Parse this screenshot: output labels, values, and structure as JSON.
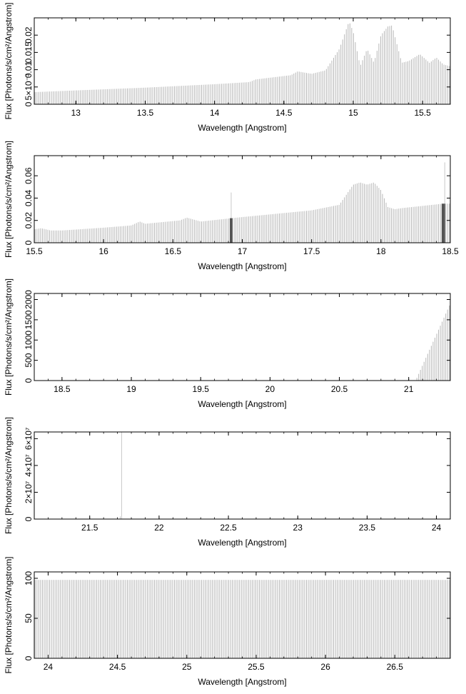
{
  "chart_data": [
    {
      "type": "bar",
      "xlabel": "Wavelength [Angstrom]",
      "ylabel": "Flux [Photons/s/cm²/Angstrom]",
      "xlim": [
        12.7,
        15.7
      ],
      "ylim": [
        0,
        0.025
      ],
      "xticks": [
        {
          "v": 13,
          "t": "13"
        },
        {
          "v": 13.5,
          "t": "13.5"
        },
        {
          "v": 14,
          "t": "14"
        },
        {
          "v": 14.5,
          "t": "14.5"
        },
        {
          "v": 15,
          "t": "15"
        },
        {
          "v": 15.5,
          "t": "15.5"
        }
      ],
      "yticks": [
        {
          "v": 0,
          "t": "0"
        },
        {
          "v": 0.005,
          "t": "5×10⁻³"
        },
        {
          "v": 0.01,
          "t": "0.01"
        },
        {
          "v": 0.015,
          "t": "0.015"
        },
        {
          "v": 0.02,
          "t": "0.02"
        }
      ],
      "bins": 230,
      "spectrum": {
        "x": [
          12.7,
          13.0,
          13.5,
          14.0,
          14.25,
          14.3,
          14.55,
          14.6,
          14.7,
          14.8,
          14.9,
          14.97,
          15.0,
          15.05,
          15.1,
          15.15,
          15.2,
          15.25,
          15.28,
          15.35,
          15.4,
          15.48,
          15.55,
          15.6,
          15.65,
          15.7
        ],
        "y": [
          0.0035,
          0.004,
          0.0048,
          0.0058,
          0.0064,
          0.0072,
          0.0084,
          0.0095,
          0.0088,
          0.0098,
          0.016,
          0.024,
          0.021,
          0.011,
          0.016,
          0.012,
          0.02,
          0.0225,
          0.0228,
          0.012,
          0.0125,
          0.0145,
          0.012,
          0.0135,
          0.0115,
          0.011
        ]
      },
      "dark_bars": []
    },
    {
      "type": "bar",
      "xlabel": "Wavelength [Angstrom]",
      "ylabel": "Flux [Photons/s/cm²/Angstrom]",
      "xlim": [
        15.5,
        18.5
      ],
      "ylim": [
        0,
        0.078
      ],
      "xticks": [
        {
          "v": 15.5,
          "t": "15.5"
        },
        {
          "v": 16,
          "t": "16"
        },
        {
          "v": 16.5,
          "t": "16.5"
        },
        {
          "v": 17,
          "t": "17"
        },
        {
          "v": 17.5,
          "t": "17.5"
        },
        {
          "v": 18,
          "t": "18"
        },
        {
          "v": 18.5,
          "t": "18.5"
        }
      ],
      "yticks": [
        {
          "v": 0,
          "t": "0"
        },
        {
          "v": 0.02,
          "t": "0.02"
        },
        {
          "v": 0.04,
          "t": "0.04"
        },
        {
          "v": 0.06,
          "t": "0.06"
        }
      ],
      "bins": 230,
      "spectrum": {
        "x": [
          15.5,
          15.55,
          15.62,
          15.7,
          16.0,
          16.2,
          16.26,
          16.3,
          16.55,
          16.6,
          16.7,
          17.0,
          17.5,
          17.7,
          17.8,
          17.85,
          17.9,
          17.95,
          18.0,
          18.05,
          18.1,
          18.15,
          18.45,
          18.5
        ],
        "y": [
          0.012,
          0.013,
          0.011,
          0.011,
          0.0135,
          0.0155,
          0.019,
          0.017,
          0.02,
          0.0225,
          0.019,
          0.023,
          0.029,
          0.034,
          0.052,
          0.054,
          0.052,
          0.054,
          0.047,
          0.032,
          0.03,
          0.031,
          0.035,
          0.035
        ]
      },
      "spikes": [
        {
          "x": 16.92,
          "y": 0.045
        },
        {
          "x": 18.46,
          "y": 0.072
        }
      ],
      "dark_bars": [
        {
          "x": 16.92,
          "y": 0.022,
          "w": 0.02
        },
        {
          "x": 18.45,
          "y": 0.035,
          "w": 0.025
        }
      ]
    },
    {
      "type": "bar",
      "xlabel": "Wavelength [Angstrom]",
      "ylabel": "Flux [Photons/s/cm²/Angstrom]",
      "xlim": [
        18.3,
        21.3
      ],
      "ylim": [
        0,
        2150
      ],
      "xticks": [
        {
          "v": 18.5,
          "t": "18.5"
        },
        {
          "v": 19,
          "t": "19"
        },
        {
          "v": 19.5,
          "t": "19.5"
        },
        {
          "v": 20,
          "t": "20"
        },
        {
          "v": 20.5,
          "t": "20.5"
        },
        {
          "v": 21,
          "t": "21"
        }
      ],
      "yticks": [
        {
          "v": 0,
          "t": "0"
        },
        {
          "v": 500,
          "t": "500"
        },
        {
          "v": 1000,
          "t": "1000"
        },
        {
          "v": 1500,
          "t": "1500"
        },
        {
          "v": 2000,
          "t": "2000"
        }
      ],
      "bins": 230,
      "spectrum": {
        "x": [
          18.3,
          21.0,
          21.05,
          21.3
        ],
        "y": [
          0,
          0,
          0,
          1900
        ]
      },
      "dark_bars": []
    },
    {
      "type": "bar",
      "xlabel": "Wavelength [Angstrom]",
      "ylabel": "Flux [Photons/s/cm²/Angstrom]",
      "xlim": [
        21.1,
        24.1
      ],
      "ylim": [
        0,
        65000000
      ],
      "xticks": [
        {
          "v": 21.5,
          "t": "21.5"
        },
        {
          "v": 22,
          "t": "22"
        },
        {
          "v": 22.5,
          "t": "22.5"
        },
        {
          "v": 23,
          "t": "23"
        },
        {
          "v": 23.5,
          "t": "23.5"
        },
        {
          "v": 24,
          "t": "24"
        }
      ],
      "yticks": [
        {
          "v": 0,
          "t": "0"
        },
        {
          "v": 20000000,
          "t": "2×10⁷"
        },
        {
          "v": 40000000,
          "t": "4×10⁷"
        },
        {
          "v": 60000000,
          "t": "6×10⁷"
        }
      ],
      "bins": 0,
      "spectrum": {
        "x": [],
        "y": []
      },
      "spikes": [
        {
          "x": 21.73,
          "y": 67000000
        },
        {
          "x": 21.72,
          "y": 2000000
        }
      ],
      "dark_bars": []
    },
    {
      "type": "bar",
      "xlabel": "Wavelength [Angstrom]",
      "ylabel": "Flux [Photons/s/cm²/Angstrom]",
      "xlim": [
        23.9,
        26.9
      ],
      "ylim": [
        0,
        108
      ],
      "xticks": [
        {
          "v": 24,
          "t": "24"
        },
        {
          "v": 24.5,
          "t": "24.5"
        },
        {
          "v": 25,
          "t": "25"
        },
        {
          "v": 25.5,
          "t": "25.5"
        },
        {
          "v": 26,
          "t": "26"
        },
        {
          "v": 26.5,
          "t": "26.5"
        }
      ],
      "yticks": [
        {
          "v": 0,
          "t": "0"
        },
        {
          "v": 50,
          "t": "50"
        },
        {
          "v": 100,
          "t": "100"
        }
      ],
      "bins": 230,
      "spectrum": {
        "x": [
          23.9,
          26.9
        ],
        "y": [
          98,
          98
        ]
      },
      "dark_bars": []
    }
  ]
}
